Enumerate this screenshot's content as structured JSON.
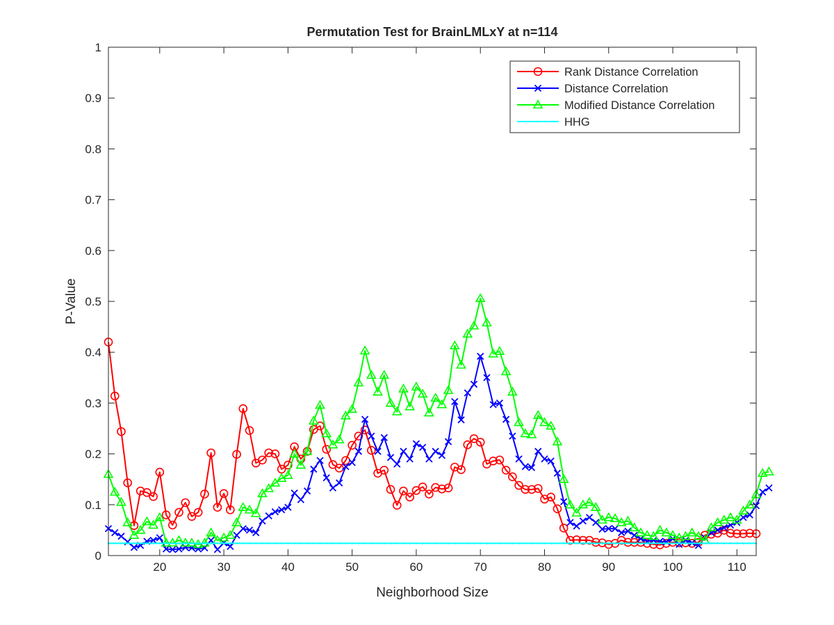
{
  "chart_data": {
    "type": "line",
    "title": "Permutation Test for BrainLMLxY at n=114",
    "xlabel": "Neighborhood Size",
    "ylabel": "P-Value",
    "xlim": [
      12,
      113
    ],
    "ylim": [
      0,
      1
    ],
    "x_ticks": [
      20,
      30,
      40,
      50,
      60,
      70,
      80,
      90,
      100,
      110
    ],
    "y_ticks": [
      0,
      0.1,
      0.2,
      0.3,
      0.4,
      0.5,
      0.6,
      0.7,
      0.8,
      0.9,
      1
    ],
    "x_tick_labels": [
      "20",
      "30",
      "40",
      "50",
      "60",
      "70",
      "80",
      "90",
      "100",
      "110"
    ],
    "y_tick_labels": [
      "0",
      "0.1",
      "0.2",
      "0.3",
      "0.4",
      "0.5",
      "0.6",
      "0.7",
      "0.8",
      "0.9",
      "1"
    ],
    "grid": false,
    "legend_position": "top-right",
    "x_start": 12,
    "series": [
      {
        "name": "Rank Distance Correlation",
        "color": "#ff0000",
        "marker": "circle",
        "values": [
          0.42,
          0.314,
          0.244,
          0.143,
          0.059,
          0.127,
          0.124,
          0.116,
          0.164,
          0.08,
          0.06,
          0.085,
          0.104,
          0.077,
          0.085,
          0.121,
          0.202,
          0.095,
          0.122,
          0.09,
          0.199,
          0.289,
          0.246,
          0.182,
          0.188,
          0.202,
          0.2,
          0.17,
          0.178,
          0.214,
          0.19,
          0.205,
          0.248,
          0.255,
          0.209,
          0.179,
          0.172,
          0.187,
          0.217,
          0.235,
          0.247,
          0.207,
          0.162,
          0.168,
          0.13,
          0.099,
          0.127,
          0.115,
          0.128,
          0.135,
          0.121,
          0.134,
          0.131,
          0.133,
          0.174,
          0.169,
          0.218,
          0.23,
          0.223,
          0.18,
          0.186,
          0.188,
          0.168,
          0.155,
          0.138,
          0.13,
          0.13,
          0.132,
          0.111,
          0.115,
          0.092,
          0.054,
          0.03,
          0.031,
          0.03,
          0.03,
          0.026,
          0.025,
          0.022,
          0.024,
          0.03,
          0.026,
          0.026,
          0.026,
          0.024,
          0.022,
          0.021,
          0.024,
          0.026,
          0.025,
          0.025,
          0.024,
          0.026,
          0.04,
          0.042,
          0.044,
          0.05,
          0.044,
          0.043,
          0.043,
          0.044,
          0.043
        ]
      },
      {
        "name": "Distance Correlation",
        "color": "#0000ff",
        "marker": "x",
        "values": [
          0.053,
          0.045,
          0.038,
          0.027,
          0.016,
          0.02,
          0.028,
          0.03,
          0.035,
          0.013,
          0.012,
          0.013,
          0.016,
          0.015,
          0.013,
          0.015,
          0.03,
          0.012,
          0.025,
          0.018,
          0.04,
          0.053,
          0.05,
          0.045,
          0.068,
          0.078,
          0.086,
          0.09,
          0.095,
          0.123,
          0.11,
          0.127,
          0.17,
          0.187,
          0.153,
          0.133,
          0.143,
          0.175,
          0.183,
          0.205,
          0.268,
          0.235,
          0.205,
          0.232,
          0.193,
          0.18,
          0.205,
          0.19,
          0.22,
          0.213,
          0.19,
          0.205,
          0.197,
          0.224,
          0.303,
          0.267,
          0.32,
          0.337,
          0.392,
          0.35,
          0.297,
          0.3,
          0.268,
          0.235,
          0.19,
          0.175,
          0.173,
          0.205,
          0.19,
          0.186,
          0.162,
          0.106,
          0.065,
          0.058,
          0.068,
          0.075,
          0.065,
          0.052,
          0.053,
          0.053,
          0.045,
          0.048,
          0.04,
          0.033,
          0.028,
          0.03,
          0.028,
          0.027,
          0.033,
          0.022,
          0.03,
          0.025,
          0.02,
          0.035,
          0.045,
          0.05,
          0.055,
          0.06,
          0.065,
          0.075,
          0.08,
          0.098,
          0.125,
          0.133
        ]
      },
      {
        "name": "Modified Distance Correlation",
        "color": "#00ff00",
        "marker": "triangle",
        "values": [
          0.16,
          0.125,
          0.105,
          0.065,
          0.04,
          0.05,
          0.067,
          0.06,
          0.075,
          0.025,
          0.025,
          0.03,
          0.025,
          0.025,
          0.022,
          0.025,
          0.045,
          0.03,
          0.035,
          0.04,
          0.065,
          0.095,
          0.09,
          0.083,
          0.122,
          0.132,
          0.143,
          0.152,
          0.158,
          0.2,
          0.178,
          0.205,
          0.265,
          0.296,
          0.24,
          0.218,
          0.228,
          0.275,
          0.288,
          0.34,
          0.403,
          0.355,
          0.322,
          0.355,
          0.3,
          0.283,
          0.328,
          0.293,
          0.332,
          0.318,
          0.281,
          0.31,
          0.297,
          0.325,
          0.413,
          0.375,
          0.436,
          0.452,
          0.506,
          0.458,
          0.397,
          0.402,
          0.362,
          0.322,
          0.262,
          0.24,
          0.238,
          0.276,
          0.262,
          0.255,
          0.224,
          0.15,
          0.1,
          0.084,
          0.1,
          0.105,
          0.095,
          0.07,
          0.075,
          0.073,
          0.065,
          0.068,
          0.055,
          0.045,
          0.04,
          0.038,
          0.05,
          0.045,
          0.04,
          0.035,
          0.038,
          0.045,
          0.038,
          0.03,
          0.055,
          0.065,
          0.07,
          0.075,
          0.07,
          0.088,
          0.1,
          0.12,
          0.162,
          0.165
        ]
      },
      {
        "name": "HHG",
        "color": "#00ffff",
        "marker": "dot",
        "values": [
          0.024,
          0.024,
          0.024,
          0.024,
          0.024,
          0.024,
          0.024,
          0.024,
          0.024,
          0.024,
          0.024,
          0.024,
          0.024,
          0.024,
          0.024,
          0.024,
          0.024,
          0.024,
          0.024,
          0.024,
          0.024,
          0.024,
          0.024,
          0.024,
          0.024,
          0.024,
          0.024,
          0.024,
          0.024,
          0.024,
          0.024,
          0.024,
          0.024,
          0.024,
          0.024,
          0.024,
          0.024,
          0.024,
          0.024,
          0.024,
          0.024,
          0.024,
          0.024,
          0.024,
          0.024,
          0.024,
          0.024,
          0.024,
          0.024,
          0.024,
          0.024,
          0.024,
          0.024,
          0.024,
          0.024,
          0.024,
          0.024,
          0.024,
          0.024,
          0.024,
          0.024,
          0.024,
          0.024,
          0.024,
          0.024,
          0.024,
          0.024,
          0.024,
          0.024,
          0.024,
          0.024,
          0.024,
          0.024,
          0.024,
          0.024,
          0.024,
          0.024,
          0.024,
          0.024,
          0.024,
          0.024,
          0.024,
          0.024,
          0.024,
          0.024,
          0.024,
          0.024,
          0.024,
          0.024,
          0.024,
          0.024,
          0.024,
          0.024,
          0.024,
          0.024,
          0.024,
          0.024,
          0.024,
          0.024,
          0.024,
          0.024,
          0.024
        ]
      }
    ]
  }
}
